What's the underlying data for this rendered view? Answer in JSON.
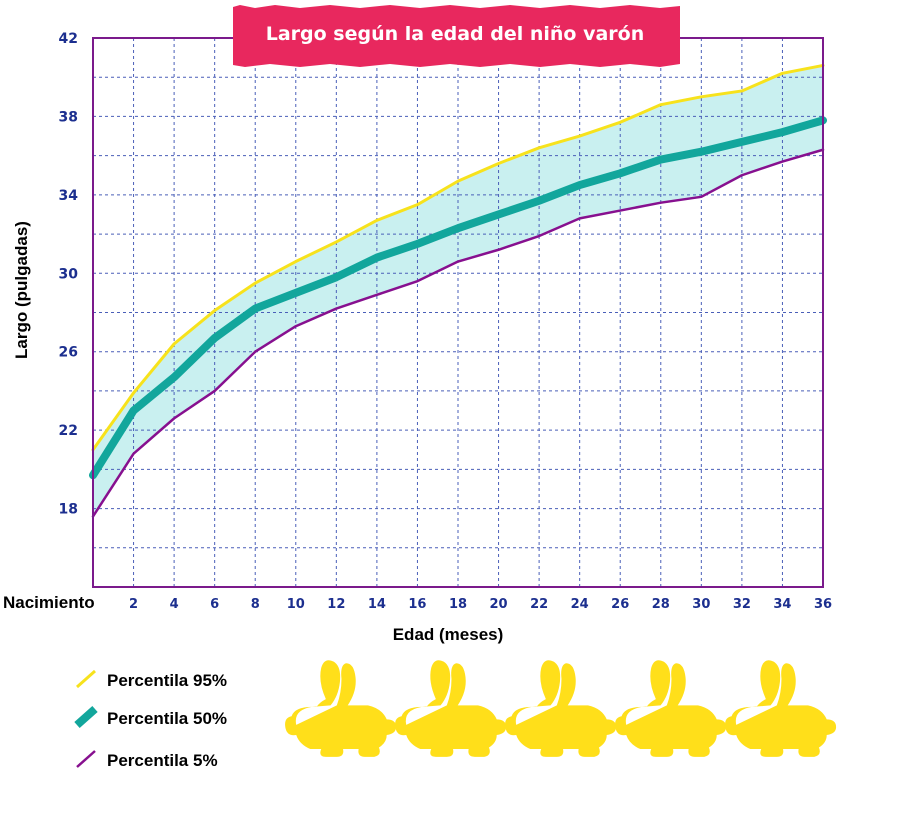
{
  "chart_data": {
    "type": "line",
    "title": "Largo según la edad del niño varón",
    "xlabel": "Edad (meses)",
    "ylabel": "Largo (pulgadas)",
    "x_first_label": "Nacimiento",
    "xlim": [
      0,
      36
    ],
    "ylim": [
      14,
      42
    ],
    "x_ticks": [
      2,
      4,
      6,
      8,
      10,
      12,
      14,
      16,
      18,
      20,
      22,
      24,
      26,
      28,
      30,
      32,
      34,
      36
    ],
    "y_ticks": [
      18,
      22,
      26,
      30,
      34,
      38,
      42
    ],
    "grid": true,
    "band_between": [
      "Percentila 5%",
      "Percentila 95%"
    ],
    "x": [
      0,
      2,
      4,
      6,
      8,
      10,
      12,
      14,
      16,
      18,
      20,
      22,
      24,
      26,
      28,
      30,
      32,
      34,
      36
    ],
    "series": [
      {
        "name": "Percentila 95%",
        "color": "#f7e21c",
        "values": [
          21.0,
          23.9,
          26.4,
          28.1,
          29.5,
          30.6,
          31.6,
          32.7,
          33.5,
          34.7,
          35.6,
          36.4,
          37.0,
          37.7,
          38.6,
          39.0,
          39.3,
          40.2,
          40.6
        ]
      },
      {
        "name": "Percentila 50%",
        "color": "#12a69c",
        "values": [
          19.7,
          23.0,
          24.7,
          26.7,
          28.2,
          29.0,
          29.8,
          30.8,
          31.5,
          32.3,
          33.0,
          33.7,
          34.5,
          35.1,
          35.8,
          36.2,
          36.7,
          37.2,
          37.8
        ]
      },
      {
        "name": "Percentila 5%",
        "color": "#87108f",
        "values": [
          17.6,
          20.8,
          22.6,
          24.0,
          26.0,
          27.3,
          28.2,
          28.9,
          29.6,
          30.6,
          31.2,
          31.9,
          32.8,
          33.2,
          33.6,
          33.9,
          35.0,
          35.7,
          36.3
        ]
      }
    ],
    "legend": [
      {
        "label": "Percentila 95%",
        "color": "#f7e21c"
      },
      {
        "label": "Percentila 50%",
        "color": "#12a69c"
      },
      {
        "label": "Percentila 5%",
        "color": "#87108f"
      }
    ]
  },
  "colors": {
    "frame": "#7b1a8c",
    "grid": "#4a5fb8",
    "band_fill": "#c9f0f0",
    "tick_text": "#1c2f8f",
    "title_bg": "#e8285e",
    "bunny": "#ffdf1a"
  },
  "decorations": {
    "bunny_count": 5
  }
}
